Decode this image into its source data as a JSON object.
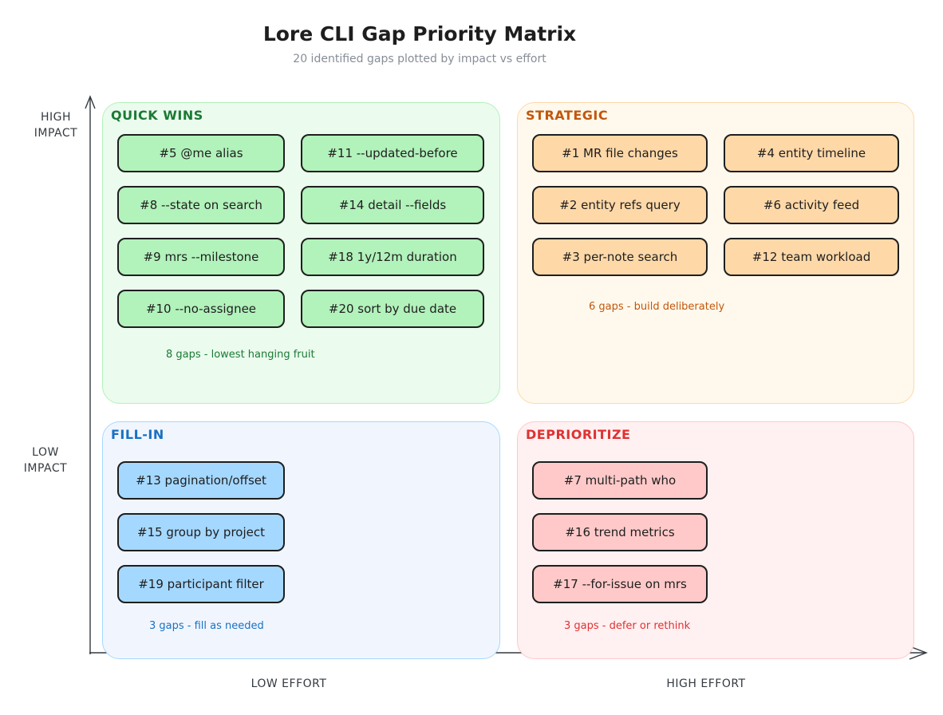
{
  "title": "Lore CLI Gap Priority Matrix",
  "subtitle": "20 identified gaps plotted by impact vs effort",
  "axes": {
    "high_impact": [
      "HIGH",
      "IMPACT"
    ],
    "low_impact": [
      "LOW",
      "IMPACT"
    ],
    "low_effort": "LOW EFFORT",
    "high_effort": "HIGH EFFORT"
  },
  "quadrants": [
    {
      "key": "quick-wins",
      "title": "QUICK WINS",
      "note": "8 gaps - lowest hanging fruit",
      "colors": {
        "bg": "#ebfbee",
        "border": "#b2f2bb",
        "card": "#b2f2bb",
        "text": "#1b7a34"
      },
      "items": [
        "#5 @me alias",
        "#11 --updated-before",
        "#8 --state on search",
        "#14 detail --fields",
        "#9 mrs --milestone",
        "#18 1y/12m duration",
        "#10 --no-assignee",
        "#20 sort by due date"
      ]
    },
    {
      "key": "strategic",
      "title": "STRATEGIC",
      "note": "6 gaps - build deliberately",
      "colors": {
        "bg": "#fff9ed",
        "border": "#ffd8a8",
        "card": "#ffd8a8",
        "text": "#c2570c"
      },
      "items": [
        "#1 MR file changes",
        "#4 entity timeline",
        "#2 entity refs query",
        "#6 activity feed",
        "#3 per-note search",
        "#12 team workload"
      ]
    },
    {
      "key": "fill-in",
      "title": "FILL-IN",
      "note": "3 gaps - fill as needed",
      "colors": {
        "bg": "#f1f6fe",
        "border": "#a5d8ff",
        "card": "#a5d8ff",
        "text": "#1971c2"
      },
      "items": [
        "#13 pagination/offset",
        "#15 group by project",
        "#19 participant filter"
      ]
    },
    {
      "key": "deprioritize",
      "title": "DEPRIORITIZE",
      "note": "3 gaps - defer or rethink",
      "colors": {
        "bg": "#fff0f1",
        "border": "#ffc9c9",
        "card": "#ffc9c9",
        "text": "#e03131"
      },
      "items": [
        "#7 multi-path who",
        "#16 trend metrics",
        "#17 --for-issue on mrs"
      ]
    }
  ]
}
